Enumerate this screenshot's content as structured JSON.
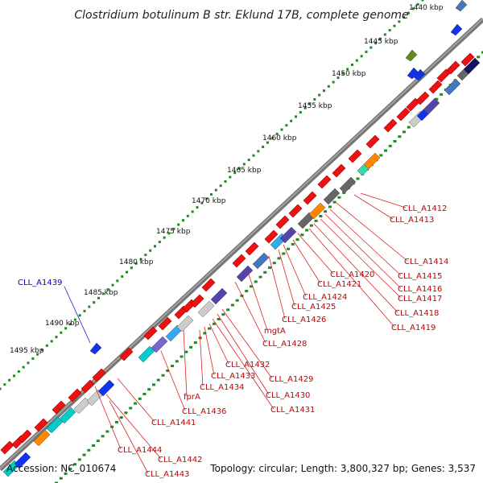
{
  "title": "Clostridium botulinum B str. Eklund 17B, complete genome",
  "footer": {
    "accession": "Accession: NC_010674",
    "summary": "Topology: circular; Length: 3,800,327 bp; Genes: 3,537"
  },
  "colors": {
    "background": "#ffffff",
    "backbone": "#777777",
    "tick_dots": "#228822",
    "gene_red": "#ee1111",
    "gene_label_red": "#cc0000",
    "gene_label_blue": "#0000cc",
    "gene_purple": "#5544aa",
    "gene_slate": "#7766cc",
    "gene_gray": "#666666",
    "gene_lightgray": "#cccccc",
    "gene_cyan": "#00cccc",
    "gene_skyblue": "#33aaee",
    "gene_steelblue": "#4477bb",
    "gene_blue": "#1133ee",
    "gene_navy": "#111166",
    "gene_orange": "#ff8800",
    "gene_olive": "#668822",
    "gene_mint": "#33ddaa"
  },
  "scale_labels": [
    "1440 kbp",
    "1445 kbp",
    "1450 kbp",
    "1455 kbp",
    "1460 kbp",
    "1465 kbp",
    "1470 kbp",
    "1475 kbp",
    "1480 kbp",
    "1485 kbp",
    "1490 kbp",
    "1495 kbp"
  ],
  "gene_labels_red": [
    "CLL_A1412",
    "CLL_A1413",
    "CLL_A1414",
    "CLL_A1415",
    "CLL_A1416",
    "CLL_A1417",
    "CLL_A1418",
    "CLL_A1419",
    "CLL_A1420",
    "CLL_A1421",
    "CLL_A1424",
    "CLL_A1425",
    "CLL_A1426",
    "mgtA",
    "CLL_A1428",
    "CLL_A1429",
    "CLL_A1430",
    "CLL_A1431",
    "CLL_A1432",
    "CLL_A1433",
    "CLL_A1434",
    "fprA",
    "CLL_A1436",
    "CLL_A1441",
    "CLL_A1444",
    "CLL_A1442",
    "CLL_A1443"
  ],
  "gene_labels_blue": [
    "CLL_A1439"
  ]
}
